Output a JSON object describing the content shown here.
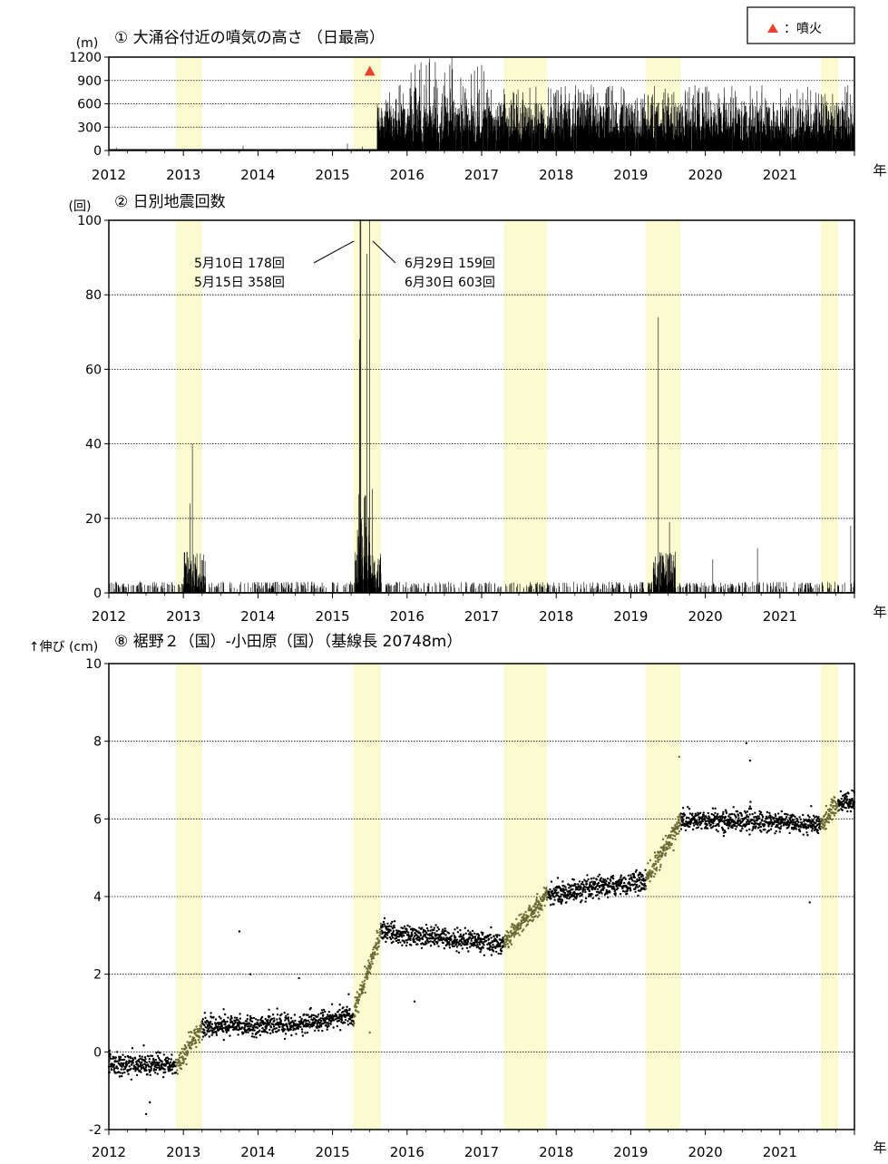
{
  "legend": {
    "marker_color": "#e8412c",
    "label": "：噴火"
  },
  "year_unit": "年",
  "shade_color": "#fbfbd2",
  "chart_data": [
    {
      "type": "bar",
      "title": "① 大涌谷付近の噴気の高さ （日最高）",
      "ylabel": "(m)",
      "ylim": [
        0,
        1200
      ],
      "yticks": [
        0,
        300,
        600,
        900,
        1200
      ],
      "xlim": [
        2012.0,
        2022.0
      ],
      "xticks": [
        "2012",
        "2013",
        "2014",
        "2015",
        "2016",
        "2017",
        "2018",
        "2019",
        "2020",
        "2021"
      ],
      "grid": true,
      "eruption_marker": {
        "x": 2015.5,
        "y": 1020
      },
      "highlighted_periods": [
        [
          2012.9,
          2013.25
        ],
        [
          2015.28,
          2015.65
        ],
        [
          2017.3,
          2017.88
        ],
        [
          2019.2,
          2019.67
        ],
        [
          2021.55,
          2021.78
        ]
      ],
      "series": [
        {
          "period": [
            2012.0,
            2015.6
          ],
          "typical_range": [
            0,
            30
          ],
          "notes": "sparse low values; a few spikes near 2012.1, 2013.8, 2015.2"
        },
        {
          "period": [
            2015.6,
            2022.0
          ],
          "typical_range": [
            0,
            600
          ],
          "max_values": [
            {
              "x": 2016.3,
              "y": 1180
            },
            {
              "x": 2016.6,
              "y": 1200
            },
            {
              "x": 2017.0,
              "y": 1100
            }
          ]
        }
      ]
    },
    {
      "type": "bar",
      "title": "② 日別地震回数",
      "ylabel": "(回)",
      "ylim": [
        0,
        100
      ],
      "yticks": [
        0,
        20,
        40,
        60,
        80,
        100
      ],
      "xlim": [
        2012.0,
        2022.0
      ],
      "xticks": [
        "2012",
        "2013",
        "2014",
        "2015",
        "2016",
        "2017",
        "2018",
        "2019",
        "2020",
        "2021"
      ],
      "grid": true,
      "highlighted_periods": [
        [
          2012.9,
          2013.25
        ],
        [
          2015.28,
          2015.65
        ],
        [
          2017.3,
          2017.88
        ],
        [
          2019.2,
          2019.67
        ],
        [
          2021.55,
          2021.78
        ]
      ],
      "peaks": [
        {
          "x": 2013.12,
          "y": 40
        },
        {
          "x": 2013.09,
          "y": 24
        },
        {
          "x": 2013.05,
          "y": 11
        },
        {
          "x": 2015.37,
          "y": 178
        },
        {
          "x": 2015.38,
          "y": 358
        },
        {
          "x": 2015.36,
          "y": 68
        },
        {
          "x": 2015.5,
          "y": 159
        },
        {
          "x": 2015.5,
          "y": 603
        },
        {
          "x": 2015.46,
          "y": 91
        },
        {
          "x": 2019.37,
          "y": 74
        },
        {
          "x": 2019.52,
          "y": 19
        },
        {
          "x": 2021.95,
          "y": 18
        },
        {
          "x": 2020.7,
          "y": 12
        },
        {
          "x": 2020.1,
          "y": 9
        }
      ],
      "annotations": [
        "5月10日 178回",
        "5月15日 358回",
        "6月29日 159回",
        "6月30日 603回"
      ]
    },
    {
      "type": "scatter",
      "title": "⑧ 裾野２（国）-小田原（国）（基線長 20748m）",
      "ylabel": "↑伸び (cm)",
      "ylim": [
        -2,
        10
      ],
      "yticks": [
        -2,
        0,
        2,
        4,
        6,
        8,
        10
      ],
      "xlim": [
        2012.0,
        2022.0
      ],
      "xticks": [
        "2012",
        "2013",
        "2014",
        "2015",
        "2016",
        "2017",
        "2018",
        "2019",
        "2020",
        "2021"
      ],
      "grid": true,
      "highlighted_periods": [
        [
          2012.9,
          2013.25
        ],
        [
          2015.28,
          2015.65
        ],
        [
          2017.3,
          2017.88
        ],
        [
          2019.2,
          2019.67
        ],
        [
          2021.55,
          2021.78
        ]
      ],
      "trend": [
        {
          "x": 2012.0,
          "y": -0.3
        },
        {
          "x": 2012.9,
          "y": -0.35
        },
        {
          "x": 2013.25,
          "y": 0.65
        },
        {
          "x": 2014.0,
          "y": 0.7
        },
        {
          "x": 2014.5,
          "y": 0.7
        },
        {
          "x": 2015.28,
          "y": 0.95
        },
        {
          "x": 2015.65,
          "y": 3.1
        },
        {
          "x": 2016.0,
          "y": 3.0
        },
        {
          "x": 2017.3,
          "y": 2.8
        },
        {
          "x": 2017.88,
          "y": 4.05
        },
        {
          "x": 2018.5,
          "y": 4.2
        },
        {
          "x": 2019.2,
          "y": 4.4
        },
        {
          "x": 2019.67,
          "y": 5.95
        },
        {
          "x": 2020.5,
          "y": 5.95
        },
        {
          "x": 2021.55,
          "y": 5.85
        },
        {
          "x": 2021.78,
          "y": 6.4
        },
        {
          "x": 2022.0,
          "y": 6.45
        }
      ],
      "outliers": [
        {
          "x": 2012.5,
          "y": -1.6
        },
        {
          "x": 2012.55,
          "y": -1.3
        },
        {
          "x": 2012.5,
          "y": -2.0
        },
        {
          "x": 2013.75,
          "y": 3.1
        },
        {
          "x": 2013.9,
          "y": 2.0
        },
        {
          "x": 2014.55,
          "y": 1.9
        },
        {
          "x": 2016.1,
          "y": 1.3
        },
        {
          "x": 2019.65,
          "y": 7.6
        },
        {
          "x": 2020.55,
          "y": 7.95
        },
        {
          "x": 2020.6,
          "y": 7.5
        },
        {
          "x": 2021.4,
          "y": 3.85
        },
        {
          "x": 2015.5,
          "y": 0.5
        }
      ]
    }
  ]
}
